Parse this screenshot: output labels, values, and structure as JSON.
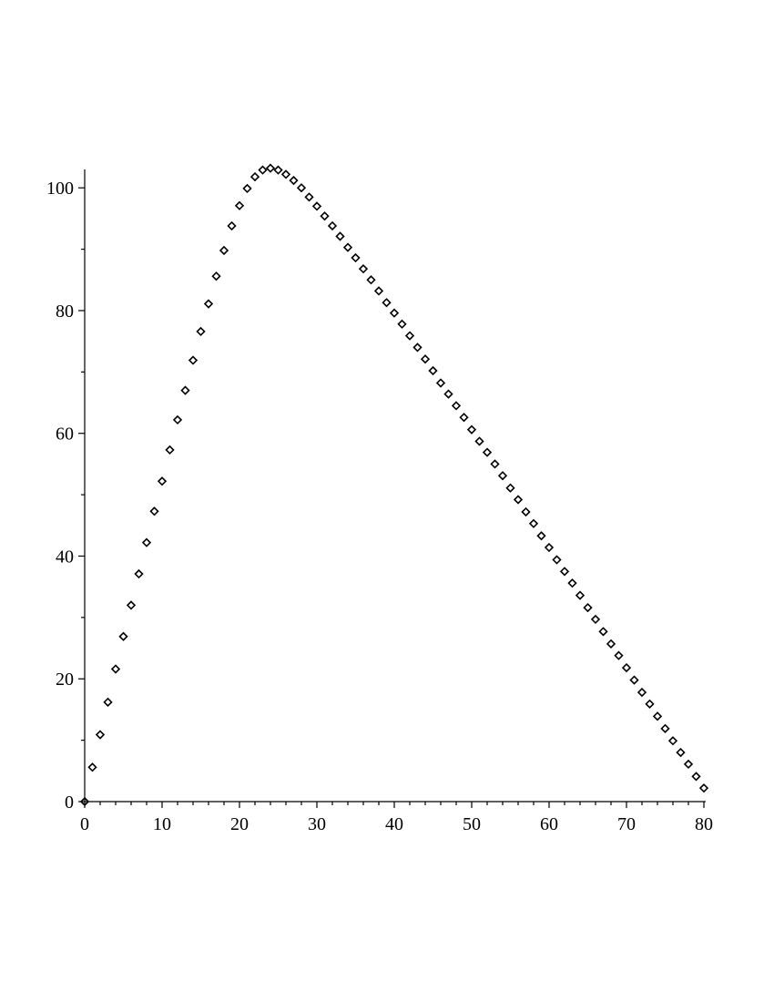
{
  "chart_data": {
    "type": "scatter",
    "title": "",
    "xlabel": "",
    "ylabel": "",
    "xlim": [
      0,
      80
    ],
    "ylim": [
      0,
      103
    ],
    "grid": false,
    "marker": "diamond",
    "color": "#000000",
    "x_ticks": [
      0,
      10,
      20,
      30,
      40,
      50,
      60,
      70,
      80
    ],
    "y_ticks": [
      0,
      20,
      40,
      60,
      80,
      100
    ],
    "series": [
      {
        "x": [
          0,
          1,
          2,
          3,
          4,
          5,
          6,
          7,
          8,
          9,
          10,
          11,
          12,
          13,
          14,
          15,
          16,
          17,
          18,
          19,
          20,
          21,
          22,
          23,
          24,
          25,
          26,
          27,
          28,
          29,
          30,
          31,
          32,
          33,
          34,
          35,
          36,
          37,
          38,
          39,
          40,
          41,
          42,
          43,
          44,
          45,
          46,
          47,
          48,
          49,
          50,
          51,
          52,
          53,
          54,
          55,
          56,
          57,
          58,
          59,
          60,
          61,
          62,
          63,
          64,
          65,
          66,
          67,
          68,
          69,
          70,
          71,
          72,
          73,
          74,
          75,
          76,
          77,
          78,
          79,
          80
        ],
        "y": [
          0.0,
          5.6,
          10.9,
          16.2,
          21.6,
          26.9,
          32.0,
          37.1,
          42.2,
          47.3,
          52.2,
          57.3,
          62.2,
          67.0,
          71.9,
          76.6,
          81.1,
          85.6,
          89.8,
          93.8,
          97.1,
          99.9,
          101.8,
          102.9,
          103.2,
          102.9,
          102.2,
          101.2,
          100.0,
          98.5,
          97.0,
          95.4,
          93.8,
          92.1,
          90.3,
          88.6,
          86.8,
          85.0,
          83.2,
          81.3,
          79.6,
          77.8,
          75.9,
          74.0,
          72.1,
          70.2,
          68.2,
          66.4,
          64.5,
          62.6,
          60.6,
          58.7,
          56.9,
          55.0,
          53.1,
          51.1,
          49.2,
          47.2,
          45.3,
          43.3,
          41.4,
          39.4,
          37.5,
          35.6,
          33.6,
          31.6,
          29.7,
          27.7,
          25.7,
          23.8,
          21.8,
          19.8,
          17.8,
          15.9,
          13.9,
          11.9,
          9.9,
          8.0,
          6.1,
          4.1,
          2.2
        ]
      }
    ]
  }
}
